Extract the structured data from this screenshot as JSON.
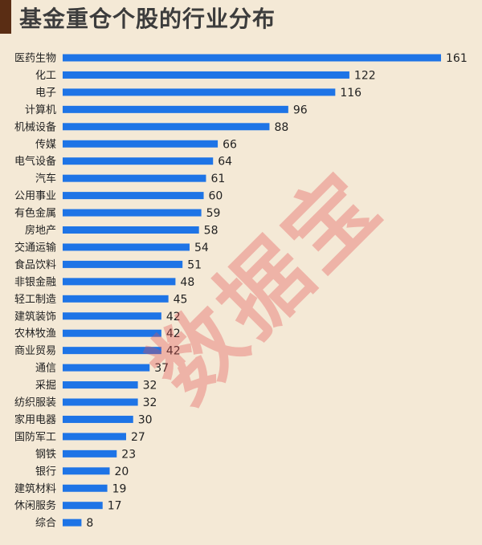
{
  "title": "基金重仓个股的行业分布",
  "watermark": "数据宝",
  "colors": {
    "bar": "#1e74e6",
    "background": "#f4e9d6",
    "accent": "#5a2d14",
    "watermark": "#e25050"
  },
  "chart_data": {
    "type": "bar",
    "orientation": "horizontal",
    "title": "基金重仓个股的行业分布",
    "categories": [
      "医药生物",
      "化工",
      "电子",
      "计算机",
      "机械设备",
      "传媒",
      "电气设备",
      "汽车",
      "公用事业",
      "有色金属",
      "房地产",
      "交通运输",
      "食品饮料",
      "非银金融",
      "轻工制造",
      "建筑装饰",
      "农林牧渔",
      "商业贸易",
      "通信",
      "采掘",
      "纺织服装",
      "家用电器",
      "国防军工",
      "钢铁",
      "银行",
      "建筑材料",
      "休闲服务",
      "综合"
    ],
    "values": [
      161,
      122,
      116,
      96,
      88,
      66,
      64,
      61,
      60,
      59,
      58,
      54,
      51,
      48,
      45,
      42,
      42,
      42,
      37,
      32,
      32,
      30,
      27,
      23,
      20,
      19,
      17,
      8
    ],
    "xlim": [
      0,
      161
    ],
    "grid": false,
    "legend": "none"
  }
}
